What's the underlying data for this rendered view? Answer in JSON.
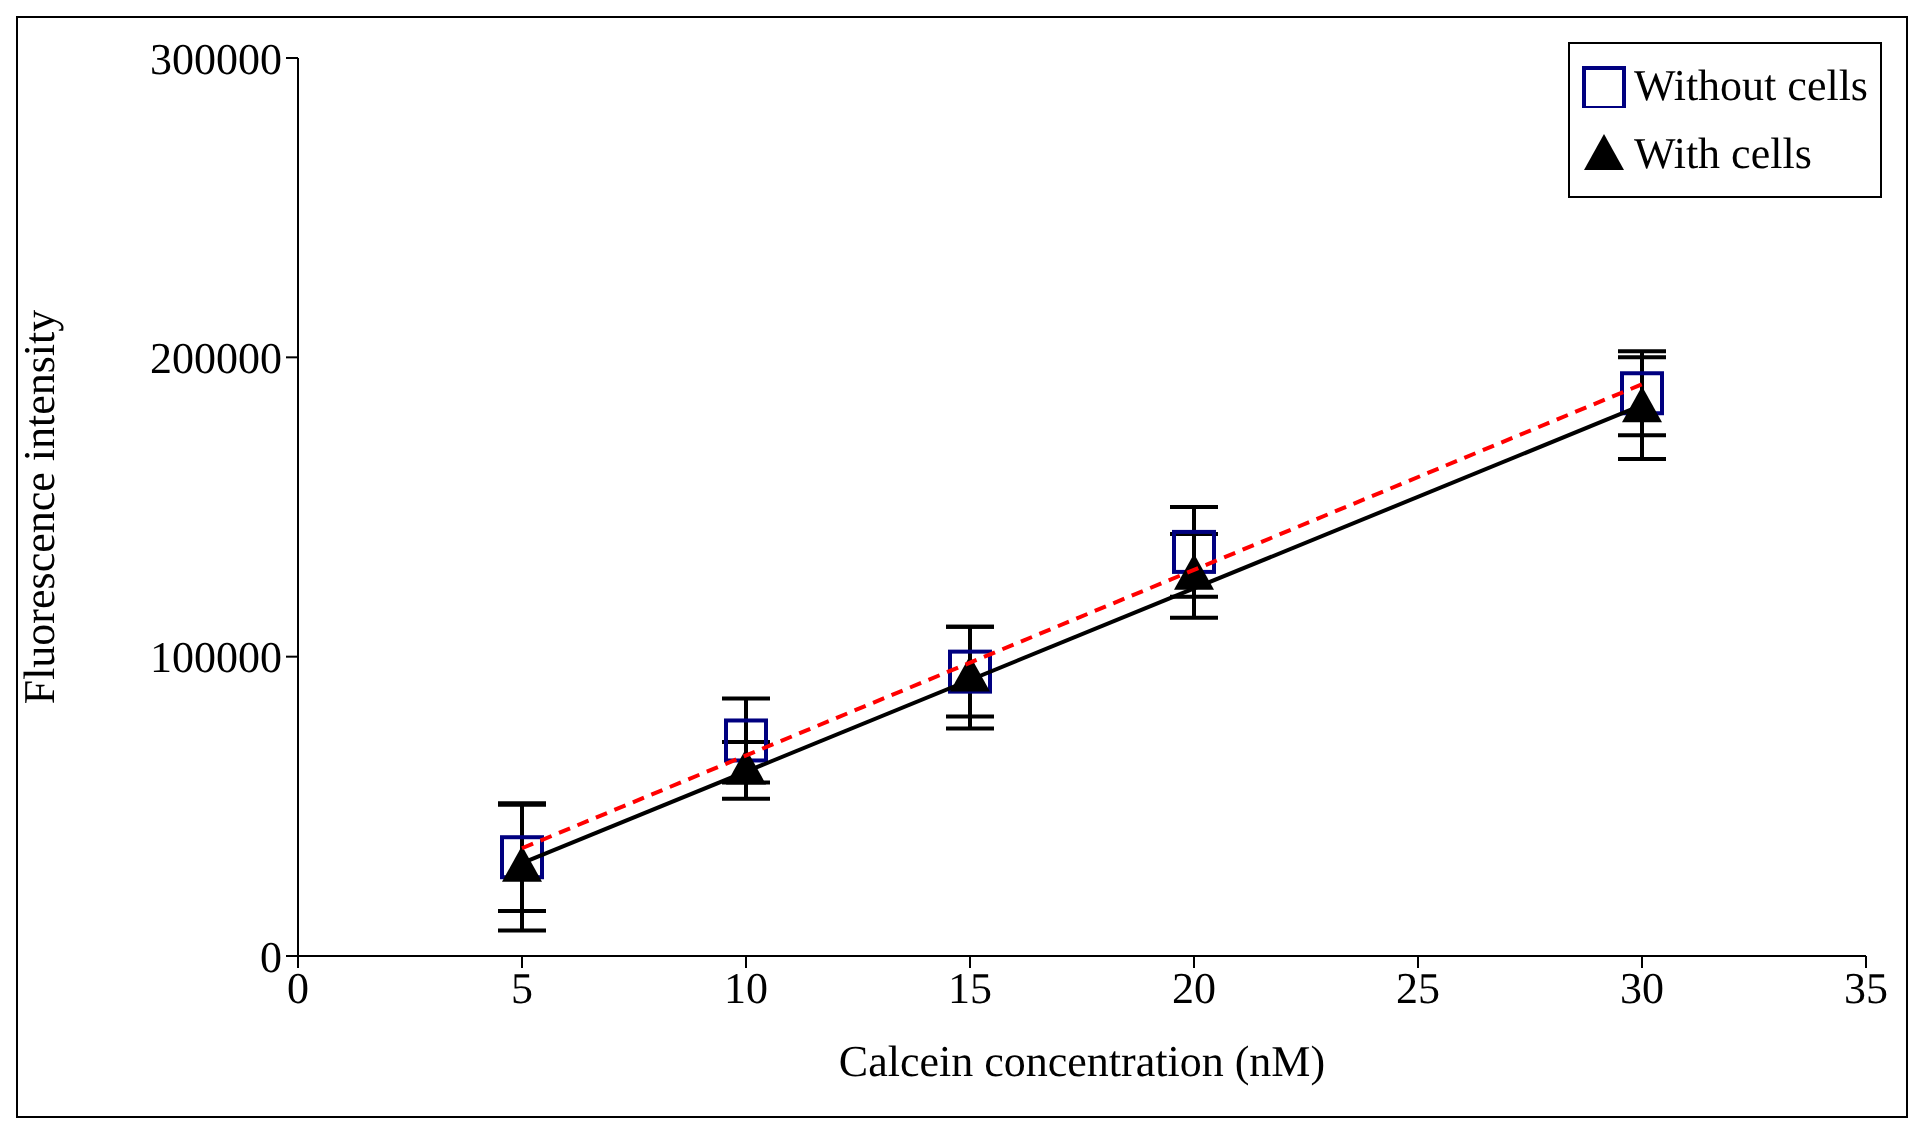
{
  "chart_data": {
    "type": "scatter",
    "xlabel": "Calcein concentration (nM)",
    "ylabel": "Fluorescence intensity",
    "xlim": [
      0,
      35
    ],
    "xticks": [
      0,
      5,
      10,
      15,
      20,
      25,
      30,
      35
    ],
    "ylim": [
      0,
      300000
    ],
    "yticks": [
      0,
      100000,
      200000,
      300000
    ],
    "grid": false,
    "legend": "top right",
    "series": [
      {
        "name": "Without cells",
        "marker": "square",
        "color": "#000080",
        "x": [
          5,
          10,
          15,
          20,
          30
        ],
        "values": [
          33000,
          72000,
          95000,
          135000,
          188000
        ],
        "errors": [
          18000,
          14000,
          15000,
          15000,
          14000
        ]
      },
      {
        "name": "With cells",
        "marker": "triangle",
        "color": "#000000",
        "x": [
          5,
          10,
          15,
          20,
          30
        ],
        "values": [
          29500,
          62000,
          93000,
          127000,
          183000
        ],
        "errors": [
          21000,
          9500,
          17000,
          14000,
          17000
        ]
      },
      {
        "type": "line",
        "marker": "none",
        "line_style": "dashed",
        "color": "#ff0000",
        "x": [
          5,
          30
        ],
        "values": [
          36000,
          191000
        ]
      },
      {
        "type": "line",
        "marker": "none",
        "line_style": "solid",
        "color": "#000000",
        "x": [
          5,
          30
        ],
        "values": [
          31000,
          184000
        ]
      }
    ]
  }
}
